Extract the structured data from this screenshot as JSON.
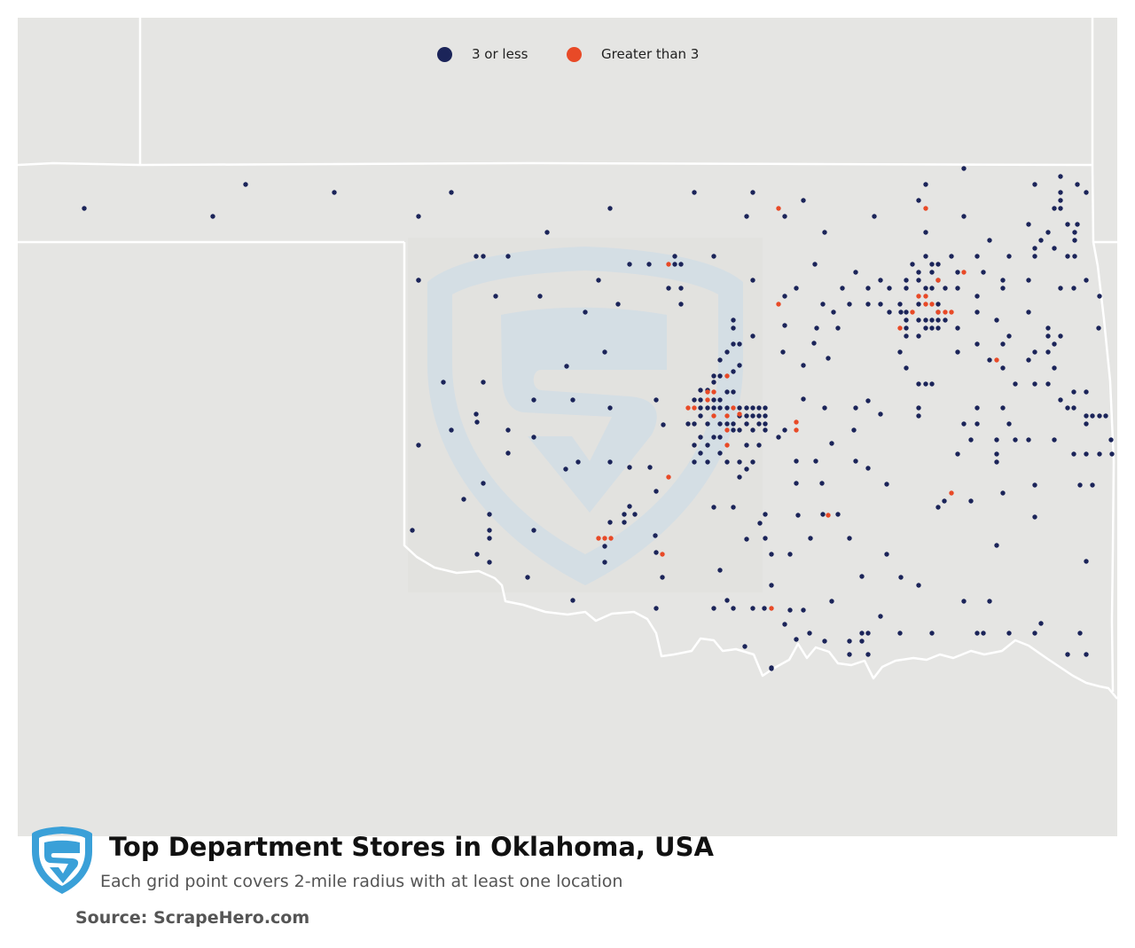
{
  "map": {
    "region": "Oklahoma, USA",
    "background_color": "#e5e5e3",
    "border_color": "#ffffff",
    "watermark_color": "#ccd8e2"
  },
  "legend": {
    "items": [
      {
        "label": "3 or less",
        "color": "#1b2459"
      },
      {
        "label": "Greater than 3",
        "color": "#e84a27"
      }
    ]
  },
  "title": "Top Department Stores in Oklahoma, USA",
  "subtitle": "Each grid point covers 2-mile radius with at least one location",
  "source": "Source: ScrapeHero.com",
  "logo": {
    "icon": "scrapehero-shield-logo",
    "color": "#3aa0d8"
  },
  "points": {
    "low": [
      [
        95,
        235
      ],
      [
        240,
        244
      ],
      [
        277,
        208
      ],
      [
        377,
        217
      ],
      [
        472,
        244
      ],
      [
        509,
        217
      ],
      [
        617,
        262
      ],
      [
        688,
        235
      ],
      [
        783,
        217
      ],
      [
        842,
        244
      ],
      [
        849,
        217
      ],
      [
        885,
        244
      ],
      [
        906,
        226
      ],
      [
        930,
        262
      ],
      [
        986,
        244
      ],
      [
        1044,
        208
      ],
      [
        1044,
        262
      ],
      [
        1087,
        190
      ],
      [
        1087,
        244
      ],
      [
        1036,
        226
      ],
      [
        1167,
        208
      ],
      [
        1196,
        199
      ],
      [
        1196,
        217
      ],
      [
        1196,
        226
      ],
      [
        1189,
        235
      ],
      [
        1196,
        235
      ],
      [
        1215,
        208
      ],
      [
        1225,
        217
      ],
      [
        1204,
        253
      ],
      [
        1215,
        253
      ],
      [
        1160,
        253
      ],
      [
        1174,
        271
      ],
      [
        1182,
        262
      ],
      [
        1212,
        262
      ],
      [
        1212,
        271
      ],
      [
        1204,
        289
      ],
      [
        1212,
        289
      ],
      [
        1167,
        280
      ],
      [
        1167,
        289
      ],
      [
        1189,
        280
      ],
      [
        1116,
        271
      ],
      [
        1225,
        316
      ],
      [
        1240,
        334
      ],
      [
        1196,
        325
      ],
      [
        1211,
        325
      ],
      [
        1160,
        316
      ],
      [
        1160,
        352
      ],
      [
        1239,
        370
      ],
      [
        1182,
        370
      ],
      [
        1182,
        379
      ],
      [
        1196,
        379
      ],
      [
        1189,
        388
      ],
      [
        1182,
        397
      ],
      [
        1167,
        397
      ],
      [
        1189,
        415
      ],
      [
        1160,
        406
      ],
      [
        1138,
        379
      ],
      [
        1131,
        388
      ],
      [
        1131,
        325
      ],
      [
        1131,
        316
      ],
      [
        1138,
        289
      ],
      [
        1124,
        361
      ],
      [
        1116,
        406
      ],
      [
        1131,
        415
      ],
      [
        1102,
        388
      ],
      [
        1102,
        289
      ],
      [
        1109,
        307
      ],
      [
        1073,
        289
      ],
      [
        1080,
        307
      ],
      [
        1080,
        325
      ],
      [
        1102,
        334
      ],
      [
        1102,
        352
      ],
      [
        1080,
        370
      ],
      [
        1080,
        397
      ],
      [
        1058,
        298
      ],
      [
        1051,
        298
      ],
      [
        1044,
        289
      ],
      [
        1029,
        298
      ],
      [
        1036,
        307
      ],
      [
        1022,
        316
      ],
      [
        1022,
        325
      ],
      [
        1036,
        316
      ],
      [
        1051,
        307
      ],
      [
        1058,
        316
      ],
      [
        1051,
        325
      ],
      [
        1044,
        325
      ],
      [
        1066,
        325
      ],
      [
        1058,
        343
      ],
      [
        1058,
        352
      ],
      [
        1036,
        343
      ],
      [
        1022,
        352
      ],
      [
        1016,
        352
      ],
      [
        1015,
        343
      ],
      [
        1022,
        361
      ],
      [
        1036,
        361
      ],
      [
        1044,
        361
      ],
      [
        1051,
        361
      ],
      [
        1058,
        361
      ],
      [
        1066,
        361
      ],
      [
        1022,
        370
      ],
      [
        1022,
        379
      ],
      [
        1044,
        370
      ],
      [
        1051,
        370
      ],
      [
        1058,
        370
      ],
      [
        1015,
        397
      ],
      [
        1022,
        415
      ],
      [
        1036,
        433
      ],
      [
        1044,
        433
      ],
      [
        1051,
        433
      ],
      [
        1036,
        460
      ],
      [
        1036,
        469
      ],
      [
        1003,
        325
      ],
      [
        993,
        316
      ],
      [
        979,
        325
      ],
      [
        965,
        307
      ],
      [
        958,
        343
      ],
      [
        945,
        370
      ],
      [
        940,
        352
      ],
      [
        979,
        343
      ],
      [
        993,
        343
      ],
      [
        1003,
        352
      ],
      [
        1036,
        379
      ],
      [
        1167,
        433
      ],
      [
        1182,
        433
      ],
      [
        1196,
        451
      ],
      [
        1204,
        460
      ],
      [
        1211,
        460
      ],
      [
        1225,
        442
      ],
      [
        1225,
        469
      ],
      [
        1232,
        469
      ],
      [
        1240,
        469
      ],
      [
        1247,
        469
      ],
      [
        1253,
        496
      ],
      [
        1254,
        512
      ],
      [
        1211,
        442
      ],
      [
        1102,
        460
      ],
      [
        1102,
        478
      ],
      [
        1087,
        478
      ],
      [
        1095,
        496
      ],
      [
        1124,
        496
      ],
      [
        1145,
        496
      ],
      [
        1160,
        496
      ],
      [
        1189,
        496
      ],
      [
        1138,
        478
      ],
      [
        1131,
        460
      ],
      [
        1124,
        512
      ],
      [
        1124,
        521
      ],
      [
        1080,
        512
      ],
      [
        1211,
        512
      ],
      [
        1225,
        512
      ],
      [
        1240,
        512
      ],
      [
        1225,
        478
      ],
      [
        1218,
        547
      ],
      [
        1232,
        547
      ],
      [
        1167,
        547
      ],
      [
        1131,
        556
      ],
      [
        1095,
        565
      ],
      [
        1065,
        565
      ],
      [
        1058,
        572
      ],
      [
        1167,
        583
      ],
      [
        1124,
        615
      ],
      [
        1225,
        633
      ],
      [
        1087,
        678
      ],
      [
        1116,
        678
      ],
      [
        1051,
        714
      ],
      [
        1102,
        714
      ],
      [
        1109,
        714
      ],
      [
        1138,
        714
      ],
      [
        1167,
        714
      ],
      [
        1218,
        714
      ],
      [
        1174,
        703
      ],
      [
        1204,
        738
      ],
      [
        1225,
        738
      ],
      [
        1015,
        714
      ],
      [
        993,
        695
      ],
      [
        979,
        714
      ],
      [
        972,
        714
      ],
      [
        972,
        723
      ],
      [
        958,
        723
      ],
      [
        979,
        738
      ],
      [
        958,
        738
      ],
      [
        930,
        723
      ],
      [
        913,
        714
      ],
      [
        898,
        721
      ],
      [
        906,
        688
      ],
      [
        891,
        688
      ],
      [
        938,
        678
      ],
      [
        862,
        686
      ],
      [
        849,
        686
      ],
      [
        827,
        686
      ],
      [
        805,
        686
      ],
      [
        820,
        677
      ],
      [
        870,
        660
      ],
      [
        870,
        753
      ],
      [
        840,
        729
      ],
      [
        885,
        704
      ],
      [
        958,
        607
      ],
      [
        972,
        650
      ],
      [
        1000,
        625
      ],
      [
        1016,
        651
      ],
      [
        1036,
        660
      ],
      [
        945,
        580
      ],
      [
        914,
        607
      ],
      [
        900,
        581
      ],
      [
        928,
        580
      ],
      [
        927,
        545
      ],
      [
        898,
        545
      ],
      [
        863,
        607
      ],
      [
        863,
        580
      ],
      [
        857,
        590
      ],
      [
        870,
        625
      ],
      [
        891,
        625
      ],
      [
        898,
        520
      ],
      [
        920,
        520
      ],
      [
        938,
        500
      ],
      [
        963,
        485
      ],
      [
        979,
        528
      ],
      [
        965,
        520
      ],
      [
        1000,
        546
      ],
      [
        993,
        467
      ],
      [
        979,
        452
      ],
      [
        965,
        460
      ],
      [
        930,
        460
      ],
      [
        906,
        450
      ],
      [
        885,
        485
      ],
      [
        878,
        493
      ],
      [
        906,
        412
      ],
      [
        934,
        404
      ],
      [
        849,
        379
      ],
      [
        883,
        397
      ],
      [
        885,
        367
      ],
      [
        918,
        387
      ],
      [
        921,
        370
      ],
      [
        928,
        343
      ],
      [
        950,
        325
      ],
      [
        919,
        298
      ],
      [
        898,
        325
      ],
      [
        885,
        334
      ],
      [
        849,
        316
      ],
      [
        827,
        361
      ],
      [
        827,
        370
      ],
      [
        827,
        388
      ],
      [
        820,
        397
      ],
      [
        812,
        406
      ],
      [
        834,
        388
      ],
      [
        834,
        412
      ],
      [
        827,
        419
      ],
      [
        812,
        424
      ],
      [
        805,
        424
      ],
      [
        805,
        431
      ],
      [
        798,
        440
      ],
      [
        790,
        440
      ],
      [
        783,
        451
      ],
      [
        790,
        451
      ],
      [
        805,
        451
      ],
      [
        812,
        451
      ],
      [
        820,
        442
      ],
      [
        827,
        442
      ],
      [
        805,
        460
      ],
      [
        812,
        460
      ],
      [
        790,
        460
      ],
      [
        798,
        460
      ],
      [
        820,
        460
      ],
      [
        834,
        460
      ],
      [
        842,
        460
      ],
      [
        849,
        460
      ],
      [
        856,
        460
      ],
      [
        863,
        460
      ],
      [
        790,
        469
      ],
      [
        783,
        478
      ],
      [
        776,
        478
      ],
      [
        798,
        478
      ],
      [
        812,
        478
      ],
      [
        820,
        478
      ],
      [
        827,
        478
      ],
      [
        834,
        469
      ],
      [
        842,
        469
      ],
      [
        849,
        469
      ],
      [
        856,
        469
      ],
      [
        863,
        469
      ],
      [
        842,
        478
      ],
      [
        856,
        478
      ],
      [
        863,
        478
      ],
      [
        863,
        485
      ],
      [
        849,
        485
      ],
      [
        834,
        485
      ],
      [
        827,
        485
      ],
      [
        842,
        502
      ],
      [
        856,
        502
      ],
      [
        820,
        521
      ],
      [
        834,
        521
      ],
      [
        849,
        521
      ],
      [
        842,
        529
      ],
      [
        834,
        538
      ],
      [
        790,
        493
      ],
      [
        783,
        502
      ],
      [
        798,
        502
      ],
      [
        805,
        493
      ],
      [
        812,
        493
      ],
      [
        790,
        511
      ],
      [
        783,
        521
      ],
      [
        798,
        521
      ],
      [
        812,
        511
      ],
      [
        740,
        451
      ],
      [
        748,
        479
      ],
      [
        733,
        527
      ],
      [
        740,
        554
      ],
      [
        710,
        527
      ],
      [
        688,
        521
      ],
      [
        652,
        521
      ],
      [
        638,
        529
      ],
      [
        710,
        571
      ],
      [
        704,
        580
      ],
      [
        716,
        580
      ],
      [
        704,
        589
      ],
      [
        688,
        589
      ],
      [
        682,
        616
      ],
      [
        682,
        634
      ],
      [
        646,
        677
      ],
      [
        595,
        651
      ],
      [
        552,
        634
      ],
      [
        538,
        625
      ],
      [
        552,
        598
      ],
      [
        552,
        607
      ],
      [
        552,
        580
      ],
      [
        602,
        598
      ],
      [
        523,
        563
      ],
      [
        545,
        545
      ],
      [
        573,
        511
      ],
      [
        573,
        485
      ],
      [
        509,
        485
      ],
      [
        537,
        467
      ],
      [
        538,
        476
      ],
      [
        500,
        431
      ],
      [
        545,
        431
      ],
      [
        472,
        502
      ],
      [
        465,
        598
      ],
      [
        472,
        316
      ],
      [
        472,
        316
      ],
      [
        537,
        289
      ],
      [
        545,
        289
      ],
      [
        573,
        289
      ],
      [
        559,
        334
      ],
      [
        609,
        334
      ],
      [
        660,
        352
      ],
      [
        675,
        316
      ],
      [
        710,
        298
      ],
      [
        732,
        298
      ],
      [
        761,
        298
      ],
      [
        768,
        298
      ],
      [
        761,
        289
      ],
      [
        805,
        289
      ],
      [
        768,
        325
      ],
      [
        768,
        343
      ],
      [
        754,
        325
      ],
      [
        697,
        343
      ],
      [
        682,
        397
      ],
      [
        639,
        413
      ],
      [
        602,
        451
      ],
      [
        646,
        451
      ],
      [
        688,
        460
      ],
      [
        602,
        493
      ],
      [
        739,
        604
      ],
      [
        740,
        623
      ],
      [
        740,
        686
      ],
      [
        747,
        651
      ],
      [
        812,
        643
      ],
      [
        805,
        572
      ],
      [
        827,
        572
      ],
      [
        842,
        608
      ],
      [
        870,
        754
      ],
      [
        1145,
        433
      ]
    ],
    "high": [
      [
        878,
        235
      ],
      [
        1044,
        235
      ],
      [
        1087,
        307
      ],
      [
        1058,
        316
      ],
      [
        1036,
        334
      ],
      [
        1044,
        334
      ],
      [
        1044,
        343
      ],
      [
        1051,
        343
      ],
      [
        1058,
        352
      ],
      [
        1066,
        352
      ],
      [
        1073,
        352
      ],
      [
        1029,
        352
      ],
      [
        1015,
        370
      ],
      [
        1124,
        406
      ],
      [
        878,
        343
      ],
      [
        754,
        298
      ],
      [
        820,
        424
      ],
      [
        798,
        442
      ],
      [
        805,
        442
      ],
      [
        783,
        460
      ],
      [
        776,
        460
      ],
      [
        798,
        451
      ],
      [
        820,
        469
      ],
      [
        827,
        460
      ],
      [
        834,
        467
      ],
      [
        820,
        485
      ],
      [
        805,
        469
      ],
      [
        898,
        476
      ],
      [
        898,
        485
      ],
      [
        820,
        502
      ],
      [
        754,
        538
      ],
      [
        1073,
        556
      ],
      [
        934,
        581
      ],
      [
        675,
        607
      ],
      [
        682,
        607
      ],
      [
        689,
        607
      ],
      [
        747,
        625
      ],
      [
        870,
        686
      ]
    ]
  }
}
